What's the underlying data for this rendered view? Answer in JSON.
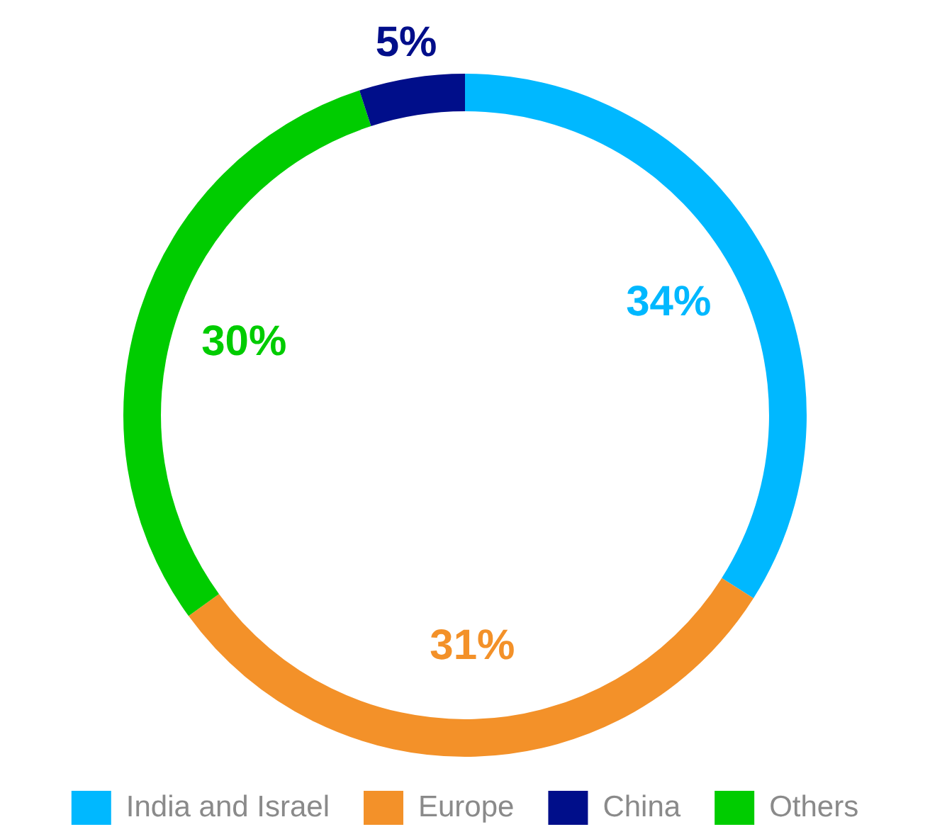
{
  "chart_data": {
    "type": "donut",
    "categories": [
      "India and Israel",
      "Europe",
      "China",
      "Others"
    ],
    "values": [
      34,
      31,
      5,
      30
    ],
    "colors": [
      "#00b8ff",
      "#f39129",
      "#000e8a",
      "#00cc00"
    ],
    "value_labels": [
      "34%",
      "31%",
      "5%",
      "30%"
    ],
    "legend": "bottom"
  }
}
